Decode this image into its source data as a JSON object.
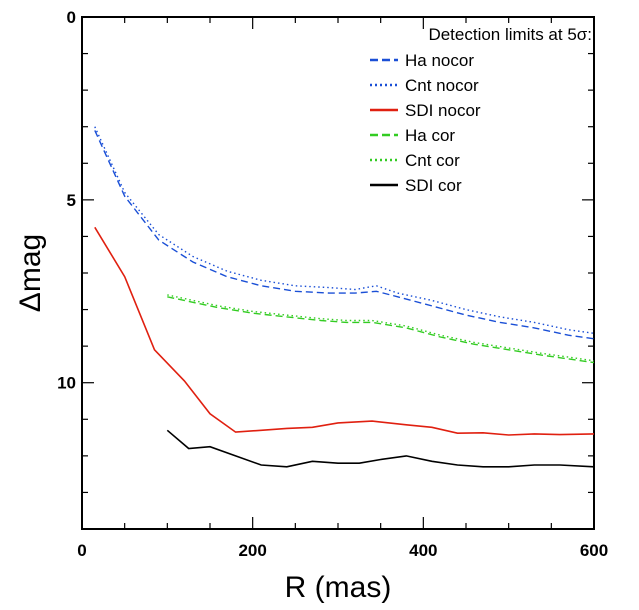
{
  "chart_data": {
    "type": "line",
    "xlabel": "R (mas)",
    "ylabel": "Δmag",
    "xlim": [
      0,
      600
    ],
    "ylim": [
      0,
      14
    ],
    "y_inverted": true,
    "x_ticks": [
      0,
      200,
      400,
      600
    ],
    "y_ticks": [
      0,
      5,
      10
    ],
    "grid": false,
    "legend_title": "Detection limits at 5σ:",
    "legend_position": "top-right",
    "series": [
      {
        "name": "Ha nocor",
        "color": "#1a4fd6",
        "dash": "dashed",
        "x": [
          15,
          50,
          90,
          130,
          170,
          210,
          250,
          290,
          320,
          345,
          370,
          410,
          450,
          490,
          530,
          570,
          600
        ],
        "y": [
          3.1,
          4.9,
          6.1,
          6.7,
          7.1,
          7.35,
          7.5,
          7.55,
          7.55,
          7.5,
          7.65,
          7.9,
          8.15,
          8.35,
          8.5,
          8.7,
          8.8
        ]
      },
      {
        "name": "Cnt nocor",
        "color": "#1a4fd6",
        "dash": "dotted",
        "x": [
          15,
          50,
          90,
          130,
          170,
          210,
          250,
          290,
          320,
          345,
          370,
          410,
          450,
          490,
          530,
          570,
          600
        ],
        "y": [
          3.0,
          4.8,
          5.95,
          6.55,
          6.95,
          7.2,
          7.35,
          7.4,
          7.45,
          7.35,
          7.55,
          7.75,
          8.0,
          8.2,
          8.35,
          8.55,
          8.65
        ]
      },
      {
        "name": "SDI nocor",
        "color": "#e02010",
        "dash": "solid",
        "x": [
          15,
          50,
          85,
          120,
          150,
          180,
          210,
          240,
          270,
          300,
          340,
          380,
          410,
          440,
          470,
          500,
          530,
          560,
          600
        ],
        "y": [
          5.75,
          7.1,
          9.1,
          9.95,
          10.85,
          11.35,
          11.3,
          11.25,
          11.22,
          11.1,
          11.05,
          11.15,
          11.22,
          11.38,
          11.37,
          11.43,
          11.4,
          11.42,
          11.4
        ]
      },
      {
        "name": "Ha cor",
        "color": "#33cc22",
        "dash": "dashed",
        "x": [
          100,
          130,
          160,
          200,
          240,
          280,
          310,
          340,
          380,
          420,
          460,
          500,
          540,
          570,
          600
        ],
        "y": [
          7.65,
          7.8,
          7.95,
          8.1,
          8.2,
          8.3,
          8.35,
          8.35,
          8.5,
          8.75,
          8.95,
          9.1,
          9.25,
          9.35,
          9.45
        ]
      },
      {
        "name": "Cnt cor",
        "color": "#33cc22",
        "dash": "dotted",
        "x": [
          100,
          130,
          160,
          200,
          240,
          280,
          310,
          340,
          380,
          420,
          460,
          500,
          540,
          570,
          600
        ],
        "y": [
          7.6,
          7.75,
          7.9,
          8.05,
          8.15,
          8.25,
          8.3,
          8.3,
          8.45,
          8.7,
          8.9,
          9.05,
          9.2,
          9.3,
          9.4
        ]
      },
      {
        "name": "SDI cor",
        "color": "#000000",
        "dash": "solid",
        "x": [
          100,
          125,
          150,
          180,
          210,
          240,
          270,
          300,
          325,
          350,
          380,
          410,
          440,
          470,
          500,
          530,
          560,
          600
        ],
        "y": [
          11.3,
          11.8,
          11.75,
          12.0,
          12.25,
          12.3,
          12.15,
          12.2,
          12.2,
          12.1,
          12.0,
          12.15,
          12.25,
          12.3,
          12.3,
          12.25,
          12.25,
          12.3
        ]
      }
    ]
  }
}
